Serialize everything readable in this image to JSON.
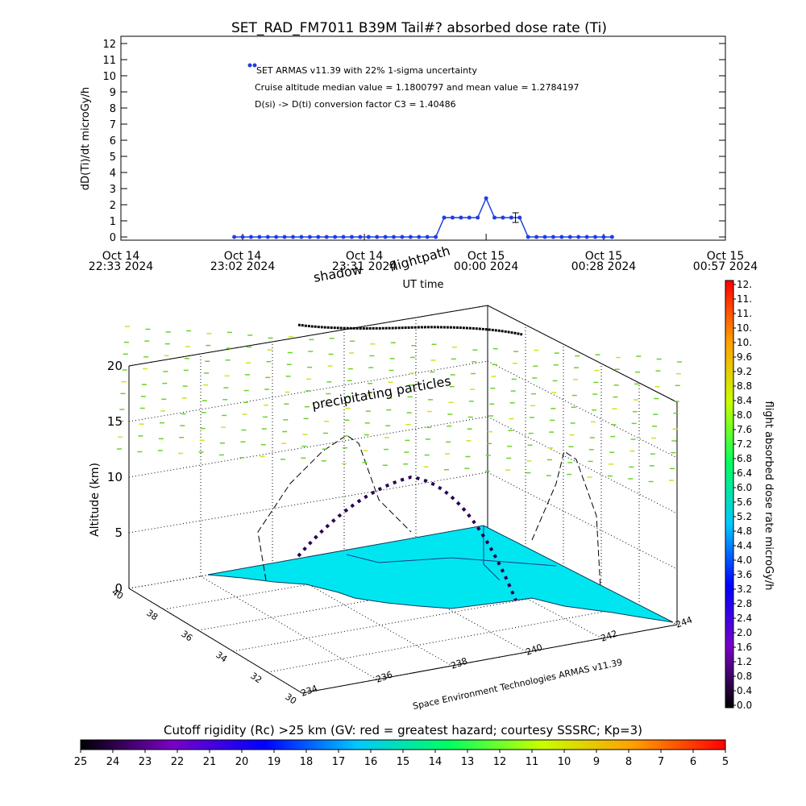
{
  "chart_data": [
    {
      "type": "line",
      "title": "SET_RAD_FM7011  B39M Tail#? absorbed dose rate (Ti)",
      "ylabel": "dD(Ti)/dt microGy/h",
      "xlabel": "UT time",
      "annotations": [
        "Cruise altitude median value = 1.1800797 and mean value = 1.2784197",
        "D(si) -> D(ti) conversion factor C3 = 1.40486"
      ],
      "xlim": [
        "2024-10-14 22:33",
        "2024-10-15 00:57"
      ],
      "xticks": [
        {
          "value": "2024-10-14 22:33",
          "label": "Oct 14\n22:33 2024"
        },
        {
          "value": "2024-10-14 23:02",
          "label": "Oct 14\n23:02 2024"
        },
        {
          "value": "2024-10-14 23:31",
          "label": "Oct 14\n23:31 2024"
        },
        {
          "value": "2024-10-15 00:00",
          "label": "Oct 15\n00:00 2024"
        },
        {
          "value": "2024-10-15 00:28",
          "label": "Oct 15\n00:28 2024"
        },
        {
          "value": "2024-10-15 00:57",
          "label": "Oct 15\n00:57 2024"
        }
      ],
      "ylim": [
        -0.2,
        12.45
      ],
      "yticks": [
        0,
        1,
        2,
        3,
        4,
        5,
        6,
        7,
        8,
        9,
        10,
        11,
        12
      ],
      "x": [
        "2024-10-14 23:00",
        "2024-10-14 23:02",
        "2024-10-14 23:04",
        "2024-10-14 23:06",
        "2024-10-14 23:08",
        "2024-10-14 23:10",
        "2024-10-14 23:12",
        "2024-10-14 23:14",
        "2024-10-14 23:16",
        "2024-10-14 23:18",
        "2024-10-14 23:20",
        "2024-10-14 23:22",
        "2024-10-14 23:24",
        "2024-10-14 23:26",
        "2024-10-14 23:28",
        "2024-10-14 23:30",
        "2024-10-14 23:32",
        "2024-10-14 23:34",
        "2024-10-14 23:36",
        "2024-10-14 23:38",
        "2024-10-14 23:40",
        "2024-10-14 23:42",
        "2024-10-14 23:44",
        "2024-10-14 23:46",
        "2024-10-14 23:48",
        "2024-10-14 23:50",
        "2024-10-14 23:52",
        "2024-10-14 23:54",
        "2024-10-14 23:56",
        "2024-10-14 23:58",
        "2024-10-15 00:00",
        "2024-10-15 00:02",
        "2024-10-15 00:04",
        "2024-10-15 00:06",
        "2024-10-15 00:08",
        "2024-10-15 00:10",
        "2024-10-15 00:12",
        "2024-10-15 00:14",
        "2024-10-15 00:16",
        "2024-10-15 00:18",
        "2024-10-15 00:20",
        "2024-10-15 00:22",
        "2024-10-15 00:24",
        "2024-10-15 00:26",
        "2024-10-15 00:28",
        "2024-10-15 00:30"
      ],
      "series": [
        {
          "name": "SET ARMAS v11.39 with 22% 1-sigma uncertainty",
          "color": "#1f3fe0",
          "values": [
            0,
            0,
            0,
            0,
            0,
            0,
            0,
            0,
            0,
            0,
            0,
            0,
            0,
            0,
            0,
            0,
            0,
            0,
            0,
            0,
            0,
            0,
            0,
            0,
            0,
            1.2,
            1.2,
            1.2,
            1.2,
            1.2,
            2.4,
            1.2,
            1.2,
            1.2,
            1.2,
            0,
            0,
            0,
            0,
            0,
            0,
            0,
            0,
            0,
            0,
            0
          ]
        }
      ],
      "error_bar": {
        "x": "2024-10-15 00:07",
        "value": 1.2,
        "error": 0.3
      }
    },
    {
      "type": "surface3d",
      "zlabel": "Altitude (km)",
      "annotations": [
        "shadow",
        "flightpath",
        "precipitating particles",
        "Space Environment Technologies ARMAS v11.39"
      ],
      "zlim": [
        0,
        20
      ],
      "zticks": [
        0,
        5,
        10,
        15,
        20
      ],
      "latlim": [
        30,
        40
      ],
      "latticks": [
        40,
        38,
        36,
        34,
        32,
        30
      ],
      "lonlim": [
        234,
        244
      ],
      "lonticks": [
        234,
        236,
        238,
        240,
        242,
        244
      ]
    },
    {
      "type": "colorbar",
      "orientation": "vertical",
      "label": "flight absorbed dose rate microGy/h",
      "clim": [
        0,
        11.6
      ],
      "colormap": [
        "#000000",
        "#7a00c8",
        "#0000ff",
        "#00c8ff",
        "#00ff60",
        "#c8ff00",
        "#ffa000",
        "#ff0000"
      ],
      "ticks": [
        {
          "value": 0,
          "label": "0.0"
        },
        0.4,
        0.8,
        1.2,
        1.6,
        {
          "value": 2,
          "label": "2.0"
        },
        2.4,
        2.8,
        3.2,
        3.6,
        {
          "value": 4,
          "label": "4.0"
        },
        4.4,
        4.8,
        5.2,
        5.6,
        {
          "value": 6,
          "label": "6.0"
        },
        6.4,
        6.8,
        7.2,
        7.6,
        {
          "value": 8,
          "label": "8.0"
        },
        8.4,
        8.8,
        9.2,
        9.6,
        {
          "value": 10,
          "label": "10."
        },
        {
          "value": 10.4,
          "label": "10."
        },
        {
          "value": 10.8,
          "label": "11."
        },
        {
          "value": 11.2,
          "label": "11."
        },
        {
          "value": 11.6,
          "label": "12."
        }
      ]
    },
    {
      "type": "colorbar",
      "orientation": "horizontal",
      "label": "Cutoff rigidity (Rc) >25 km (GV: red = greatest hazard; courtesy SSSRC; Kp=3)",
      "clim": [
        25,
        5
      ],
      "colormap": [
        "#000000",
        "#7a00c8",
        "#0000ff",
        "#00c8ff",
        "#00ff60",
        "#c8ff00",
        "#ffa000",
        "#ff0000"
      ],
      "ticks": [
        25,
        24,
        23,
        22,
        21,
        20,
        19,
        18,
        17,
        16,
        15,
        14,
        13,
        12,
        11,
        10,
        9,
        8,
        7,
        6,
        5
      ]
    }
  ]
}
